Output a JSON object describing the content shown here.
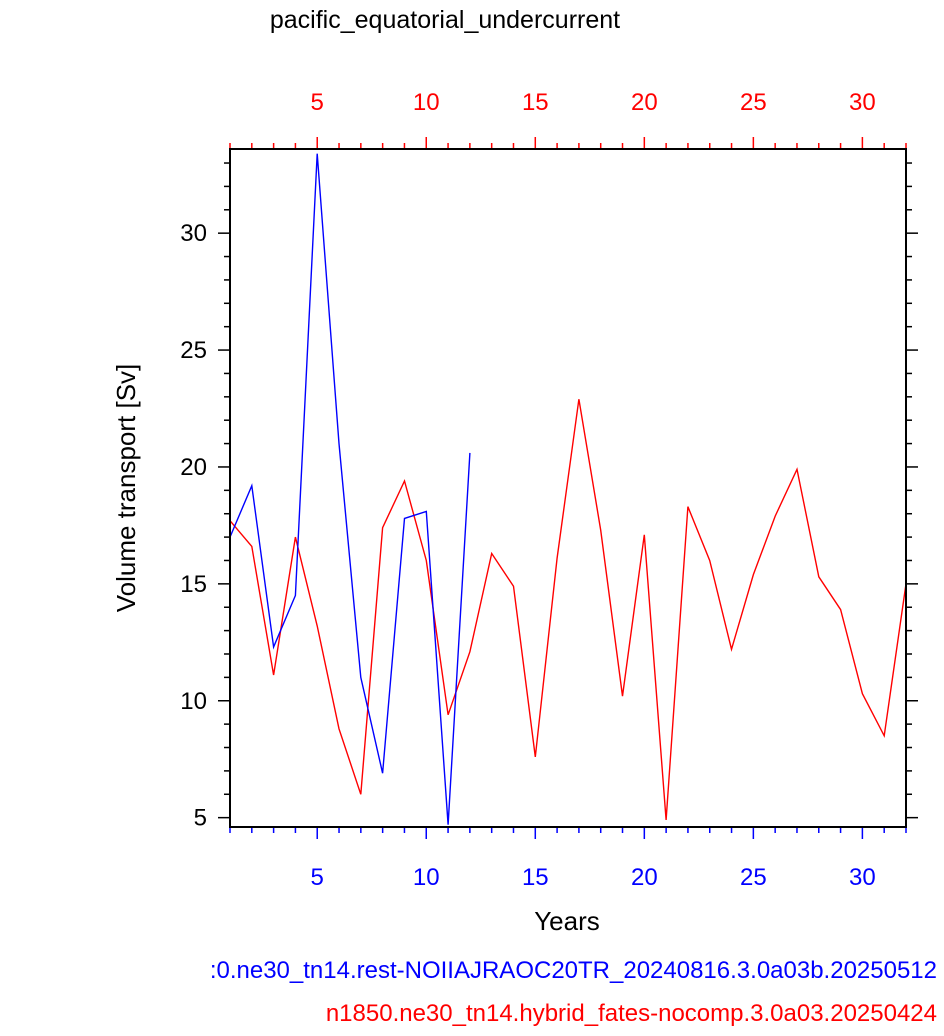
{
  "chart_data": {
    "type": "line",
    "title": "pacific_equatorial_undercurrent",
    "xlabel": "Years",
    "ylabel": "Volume transport [Sv]",
    "xlim": [
      1,
      32
    ],
    "ylim": [
      4.6,
      33.6
    ],
    "y_ticks": [
      5,
      10,
      15,
      20,
      25,
      30
    ],
    "x_ticks": [
      5,
      10,
      15,
      20,
      25,
      30
    ],
    "grid": false,
    "colors": {
      "series_blue": "#0000ff",
      "series_red": "#ff0000",
      "frame": "#000000"
    },
    "series": [
      {
        "caption": ":0.ne30_tn14.rest-NOIIAJRAOC20TR_20240816.3.0a03b.20250512",
        "color": "#0000ff",
        "x": [
          1,
          2,
          3,
          4,
          5,
          6,
          7,
          8,
          9,
          10,
          11,
          12
        ],
        "y": [
          17.0,
          19.2,
          12.3,
          14.5,
          33.4,
          21.0,
          11.0,
          6.9,
          17.8,
          18.1,
          4.7,
          20.6
        ]
      },
      {
        "caption": "n1850.ne30_tn14.hybrid_fates-nocomp.3.0a03.20250424",
        "color": "#ff0000",
        "x": [
          1,
          2,
          3,
          4,
          5,
          6,
          7,
          8,
          9,
          10,
          11,
          12,
          13,
          14,
          15,
          16,
          17,
          18,
          19,
          20,
          21,
          22,
          23,
          24,
          25,
          26,
          27,
          28,
          29,
          30,
          31,
          32
        ],
        "y": [
          17.7,
          16.6,
          11.1,
          17.0,
          13.2,
          8.8,
          6.0,
          17.4,
          19.4,
          16.0,
          9.4,
          12.1,
          16.3,
          14.9,
          7.6,
          16.1,
          22.9,
          17.3,
          10.2,
          17.1,
          4.9,
          18.3,
          16.0,
          12.2,
          15.4,
          17.9,
          19.9,
          15.3,
          13.9,
          10.3,
          8.5,
          15.0
        ]
      }
    ]
  }
}
